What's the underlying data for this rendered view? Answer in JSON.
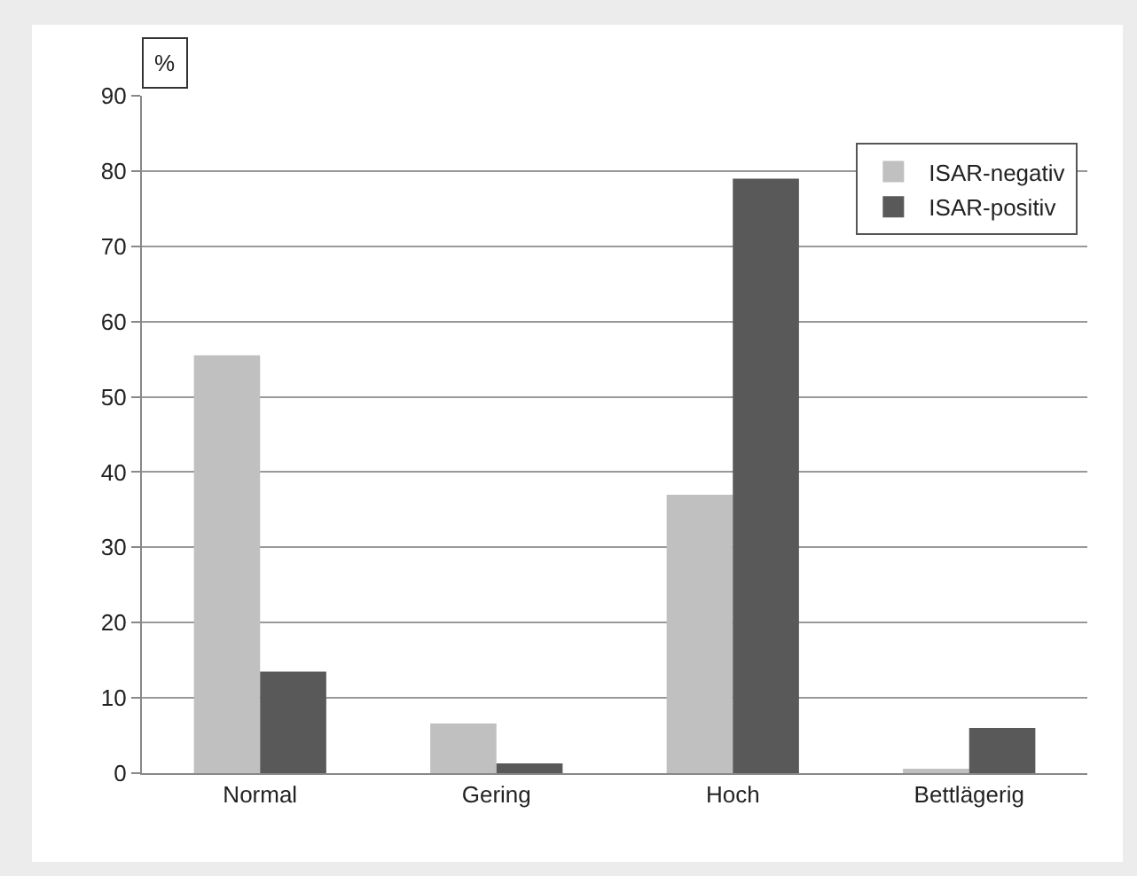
{
  "chart_data": {
    "type": "bar",
    "ylabel": "%",
    "categories": [
      "Normal",
      "Gering",
      "Hoch",
      "Bettlägerig"
    ],
    "series": [
      {
        "name": "ISAR-negativ",
        "color": "#c0c0c0",
        "values": [
          55.5,
          6.6,
          37,
          0.6
        ]
      },
      {
        "name": "ISAR-positiv",
        "color": "#595959",
        "values": [
          13.5,
          1.3,
          79,
          6
        ]
      }
    ],
    "ylim": [
      0,
      90
    ],
    "yticks": [
      0,
      10,
      20,
      30,
      40,
      50,
      60,
      70,
      80,
      90
    ],
    "grid": "y",
    "legend": "top right"
  }
}
